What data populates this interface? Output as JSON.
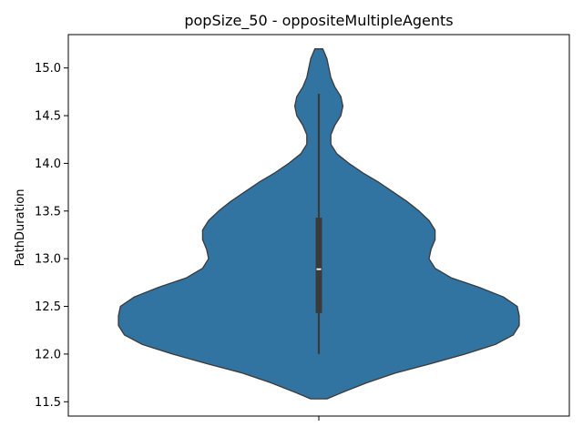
{
  "chart_data": {
    "type": "violin",
    "title": "popSize_50 - oppositeMultipleAgents",
    "xlabel": "",
    "ylabel": "PathDuration",
    "ylim": [
      11.35,
      15.35
    ],
    "yticks": [
      11.5,
      12.0,
      12.5,
      13.0,
      13.5,
      14.0,
      14.5,
      15.0
    ],
    "ytick_labels": [
      "11.5",
      "12.0",
      "12.5",
      "13.0",
      "13.5",
      "14.0",
      "14.5",
      "15.0"
    ],
    "x_categories": [
      ""
    ],
    "grid": false,
    "series": [
      {
        "color": "#3274a1",
        "edge_color": "#3a3a3a",
        "density_max_halfwidth_units": 1.0,
        "density_profile": [
          [
            11.53,
            0.04
          ],
          [
            11.6,
            0.12
          ],
          [
            11.7,
            0.24
          ],
          [
            11.8,
            0.38
          ],
          [
            11.9,
            0.56
          ],
          [
            12.0,
            0.73
          ],
          [
            12.1,
            0.88
          ],
          [
            12.2,
            0.97
          ],
          [
            12.3,
            1.0
          ],
          [
            12.4,
            1.0
          ],
          [
            12.5,
            0.99
          ],
          [
            12.6,
            0.92
          ],
          [
            12.7,
            0.8
          ],
          [
            12.8,
            0.66
          ],
          [
            12.9,
            0.58
          ],
          [
            13.0,
            0.55
          ],
          [
            13.1,
            0.56
          ],
          [
            13.2,
            0.58
          ],
          [
            13.3,
            0.58
          ],
          [
            13.4,
            0.55
          ],
          [
            13.5,
            0.5
          ],
          [
            13.6,
            0.44
          ],
          [
            13.7,
            0.37
          ],
          [
            13.8,
            0.3
          ],
          [
            13.9,
            0.22
          ],
          [
            14.0,
            0.15
          ],
          [
            14.1,
            0.09
          ],
          [
            14.2,
            0.06
          ],
          [
            14.3,
            0.06
          ],
          [
            14.4,
            0.08
          ],
          [
            14.5,
            0.11
          ],
          [
            14.6,
            0.12
          ],
          [
            14.7,
            0.11
          ],
          [
            14.8,
            0.08
          ],
          [
            14.9,
            0.06
          ],
          [
            15.0,
            0.05
          ],
          [
            15.1,
            0.04
          ],
          [
            15.2,
            0.02
          ]
        ],
        "whisker_low": 12.0,
        "whisker_high": 14.73,
        "q1": 12.43,
        "median": 12.89,
        "q3": 13.43
      }
    ]
  }
}
